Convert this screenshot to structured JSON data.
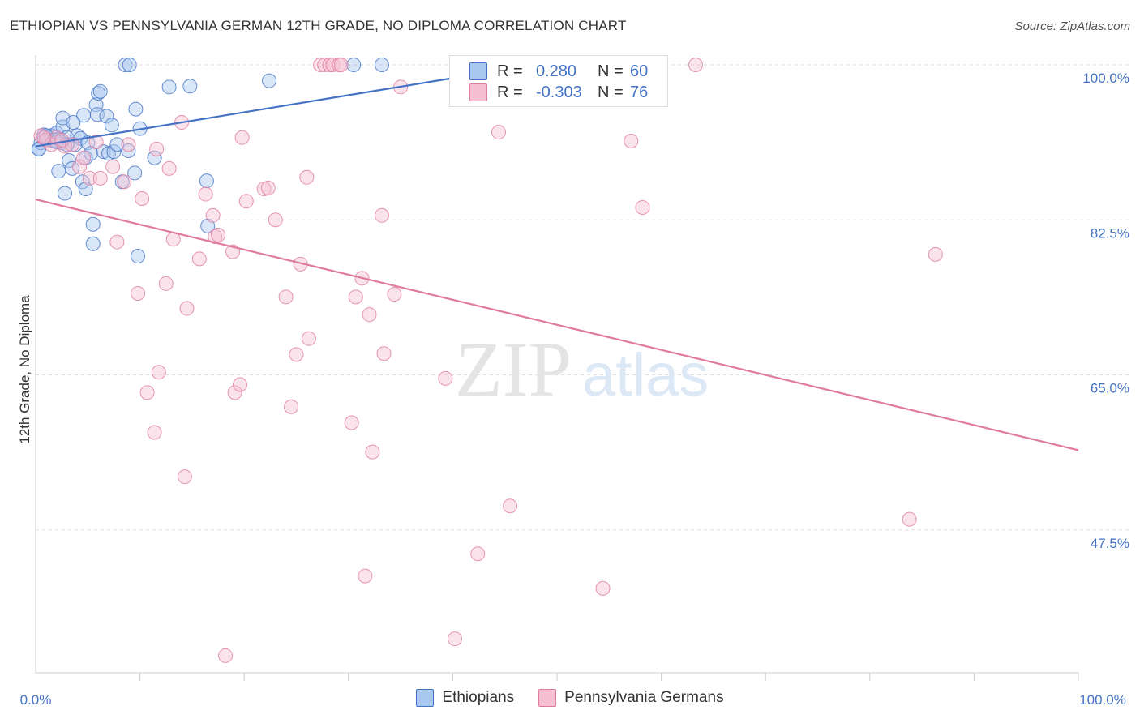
{
  "title": "ETHIOPIAN VS PENNSYLVANIA GERMAN 12TH GRADE, NO DIPLOMA CORRELATION CHART",
  "source": "Source: ZipAtlas.com",
  "watermark": {
    "zip": "ZIP",
    "atlas": "atlas"
  },
  "legend": {
    "rows": [
      {
        "r_label": "R =",
        "r_value": "0.280",
        "n_label": "N =",
        "n_value": "60",
        "color": "#a9c8ef",
        "edge": "#4472c4"
      },
      {
        "r_label": "R =",
        "r_value": "-0.303",
        "n_label": "N =",
        "n_value": "76",
        "color": "#f7c0d2",
        "edge": "#e07aa0"
      }
    ]
  },
  "bottom_legend": [
    "Ethiopians",
    "Pennsylvania Germans"
  ],
  "chart_data": {
    "type": "scatter",
    "title": "ETHIOPIAN VS PENNSYLVANIA GERMAN 12TH GRADE, NO DIPLOMA CORRELATION CHART",
    "xlabel": "",
    "ylabel": "12th Grade, No Diploma",
    "xlim": [
      0,
      100
    ],
    "ylim": [
      30,
      100
    ],
    "x_tick_labels": [
      "0.0%",
      "100.0%"
    ],
    "y_ticks": [
      100.0,
      82.5,
      65.0,
      47.5
    ],
    "y_tick_labels": [
      "100.0%",
      "82.5%",
      "65.0%",
      "47.5%"
    ],
    "series": [
      {
        "name": "Ethiopians",
        "color": "#a9c8ef",
        "edge": "#4472c4",
        "trend": {
          "x": [
            0,
            40
          ],
          "y": [
            90.8,
            98.5
          ]
        },
        "points": [
          [
            0.3,
            90.5
          ],
          [
            0.5,
            91.2
          ],
          [
            0.8,
            92.1
          ],
          [
            1.0,
            91.5
          ],
          [
            1.2,
            91.8
          ],
          [
            1.5,
            92.0
          ],
          [
            1.7,
            91.4
          ],
          [
            2.0,
            92.3
          ],
          [
            2.2,
            91.6
          ],
          [
            2.5,
            91.2
          ],
          [
            2.2,
            88.0
          ],
          [
            2.6,
            93.0
          ],
          [
            2.6,
            94.0
          ],
          [
            3.0,
            91.8
          ],
          [
            2.8,
            85.5
          ],
          [
            3.2,
            89.2
          ],
          [
            3.5,
            88.3
          ],
          [
            3.6,
            93.5
          ],
          [
            3.8,
            91.0
          ],
          [
            4.0,
            92.0
          ],
          [
            4.3,
            91.7
          ],
          [
            4.5,
            86.8
          ],
          [
            4.6,
            94.3
          ],
          [
            4.8,
            89.5
          ],
          [
            4.8,
            86.0
          ],
          [
            5.0,
            91.2
          ],
          [
            5.3,
            90.0
          ],
          [
            5.5,
            82.0
          ],
          [
            5.5,
            79.8
          ],
          [
            5.8,
            95.5
          ],
          [
            5.9,
            94.4
          ],
          [
            6.0,
            96.8
          ],
          [
            6.2,
            97.0
          ],
          [
            6.5,
            90.2
          ],
          [
            6.8,
            94.2
          ],
          [
            7.0,
            90.0
          ],
          [
            7.3,
            93.2
          ],
          [
            7.5,
            90.2
          ],
          [
            7.8,
            91.0
          ],
          [
            8.3,
            86.8
          ],
          [
            8.6,
            100.0
          ],
          [
            8.9,
            90.3
          ],
          [
            9.0,
            100.0
          ],
          [
            9.5,
            87.8
          ],
          [
            9.6,
            95.0
          ],
          [
            9.8,
            78.4
          ],
          [
            10.0,
            92.8
          ],
          [
            11.4,
            89.5
          ],
          [
            12.8,
            97.5
          ],
          [
            14.8,
            97.6
          ],
          [
            16.4,
            86.9
          ],
          [
            16.5,
            81.8
          ],
          [
            22.4,
            98.2
          ],
          [
            30.5,
            100.0
          ],
          [
            33.2,
            100.0
          ],
          [
            0.3,
            90.5
          ],
          [
            1.0,
            92.0
          ],
          [
            1.8,
            91.5
          ],
          [
            2.0,
            91.3
          ],
          [
            3.0,
            91.0
          ]
        ]
      },
      {
        "name": "Pennsylvania Germans",
        "color": "#f7c0d2",
        "edge": "#e07aa0",
        "trend": {
          "x": [
            0,
            100
          ],
          "y": [
            84.8,
            56.5
          ]
        },
        "points": [
          [
            0.5,
            92.0
          ],
          [
            1.0,
            91.5
          ],
          [
            1.5,
            91.0
          ],
          [
            2.0,
            91.8
          ],
          [
            2.8,
            90.8
          ],
          [
            3.5,
            91.0
          ],
          [
            4.2,
            88.5
          ],
          [
            4.6,
            89.5
          ],
          [
            5.2,
            87.2
          ],
          [
            5.8,
            91.3
          ],
          [
            6.2,
            87.2
          ],
          [
            7.4,
            88.5
          ],
          [
            7.8,
            80.0
          ],
          [
            8.5,
            86.8
          ],
          [
            8.9,
            91.0
          ],
          [
            9.8,
            74.2
          ],
          [
            10.2,
            84.9
          ],
          [
            10.7,
            63.0
          ],
          [
            11.4,
            58.5
          ],
          [
            11.6,
            90.5
          ],
          [
            11.8,
            65.3
          ],
          [
            12.5,
            75.3
          ],
          [
            12.8,
            88.3
          ],
          [
            13.2,
            80.3
          ],
          [
            14.0,
            93.5
          ],
          [
            14.3,
            53.5
          ],
          [
            14.5,
            72.5
          ],
          [
            15.7,
            78.1
          ],
          [
            16.3,
            85.4
          ],
          [
            17.0,
            83.0
          ],
          [
            17.2,
            80.6
          ],
          [
            17.5,
            80.8
          ],
          [
            18.2,
            33.3
          ],
          [
            18.9,
            78.9
          ],
          [
            19.1,
            63.0
          ],
          [
            19.6,
            63.9
          ],
          [
            19.8,
            91.8
          ],
          [
            20.2,
            84.6
          ],
          [
            21.9,
            86.0
          ],
          [
            22.3,
            86.1
          ],
          [
            23.0,
            82.5
          ],
          [
            24.0,
            73.8
          ],
          [
            24.5,
            61.4
          ],
          [
            25.0,
            67.3
          ],
          [
            25.4,
            77.5
          ],
          [
            26.0,
            87.3
          ],
          [
            26.2,
            69.1
          ],
          [
            27.3,
            100.0
          ],
          [
            27.7,
            100.0
          ],
          [
            28.2,
            100.0
          ],
          [
            28.5,
            100.0
          ],
          [
            29.1,
            100.0
          ],
          [
            29.3,
            100.0
          ],
          [
            30.3,
            59.6
          ],
          [
            30.7,
            73.8
          ],
          [
            31.3,
            75.9
          ],
          [
            31.6,
            42.3
          ],
          [
            32.0,
            71.8
          ],
          [
            32.3,
            56.3
          ],
          [
            33.2,
            83.0
          ],
          [
            33.4,
            67.4
          ],
          [
            34.4,
            74.1
          ],
          [
            35.0,
            97.5
          ],
          [
            39.3,
            64.6
          ],
          [
            40.2,
            35.2
          ],
          [
            42.4,
            44.8
          ],
          [
            44.4,
            92.4
          ],
          [
            45.5,
            50.2
          ],
          [
            54.4,
            40.9
          ],
          [
            57.1,
            91.4
          ],
          [
            58.2,
            83.9
          ],
          [
            63.3,
            100.0
          ],
          [
            83.8,
            48.7
          ],
          [
            86.3,
            78.6
          ],
          [
            0.8,
            91.8
          ],
          [
            2.5,
            91.5
          ]
        ]
      }
    ]
  }
}
